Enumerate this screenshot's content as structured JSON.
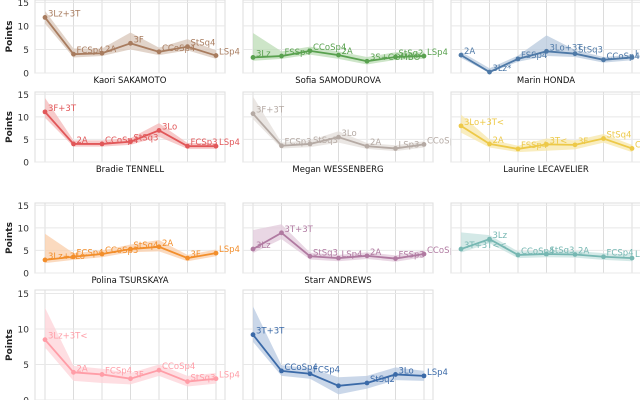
{
  "chart_data": {
    "type": "line",
    "layout": "facet-grid-3-columns",
    "ylabel": "Points",
    "y_ticks": [
      0,
      5,
      10,
      15
    ],
    "ylim": [
      0,
      15.5
    ],
    "grid": true,
    "panels": [
      {
        "title": "Kaori SAKAMOTO",
        "color": "#a87c5f",
        "band_color": "#d8c6b8",
        "points": [
          {
            "label": "3Lz+3T",
            "value": 11.8
          },
          {
            "label": "FCSp4",
            "value": 4.0
          },
          {
            "label": "2A",
            "value": 4.2
          },
          {
            "label": "3F",
            "value": 6.3
          },
          {
            "label": "CCoSp4",
            "value": 4.5
          },
          {
            "label": "StSq4",
            "value": 5.6
          },
          {
            "label": "LSp4",
            "value": 3.7
          }
        ],
        "band_low": [
          10.5,
          3.3,
          3.6,
          5.0,
          3.8,
          4.8,
          3.0
        ],
        "band_high": [
          13.2,
          5.2,
          5.2,
          8.6,
          5.4,
          7.2,
          4.8
        ]
      },
      {
        "title": "Sofia SAMODUROVA",
        "color": "#59a14f",
        "band_color": "#bcdcb5",
        "points": [
          {
            "label": "3Lz",
            "value": 3.3
          },
          {
            "label": "FSSp4",
            "value": 3.6
          },
          {
            "label": "CCoSp4",
            "value": 4.7
          },
          {
            "label": "2A",
            "value": 3.8
          },
          {
            "label": "3S+COMBO",
            "value": 2.5
          },
          {
            "label": "StSq2",
            "value": 3.4
          },
          {
            "label": "LSp4",
            "value": 3.6
          }
        ],
        "band_low": [
          2.6,
          3.0,
          3.9,
          3.0,
          1.8,
          2.8,
          3.0
        ],
        "band_high": [
          8.5,
          4.6,
          5.6,
          4.6,
          3.4,
          4.4,
          4.4
        ]
      },
      {
        "title": "Marin HONDA",
        "color": "#4e79a7",
        "band_color": "#b8c9dd",
        "points": [
          {
            "label": "2A",
            "value": 3.8
          },
          {
            "label": "3Lz*",
            "value": 0.2
          },
          {
            "label": "FSSp4",
            "value": 3.0
          },
          {
            "label": "3Lo+3T",
            "value": 4.6
          },
          {
            "label": "StSq3",
            "value": 4.1
          },
          {
            "label": "CCoSp4",
            "value": 2.8
          },
          {
            "label": "LSp4",
            "value": 3.3
          }
        ],
        "band_low": [
          3.2,
          0.0,
          2.4,
          3.6,
          3.4,
          2.2,
          2.7
        ],
        "band_high": [
          4.5,
          1.0,
          3.7,
          8.0,
          4.9,
          3.4,
          3.9
        ]
      },
      {
        "title": "Bradie TENNELL",
        "color": "#e15759",
        "band_color": "#f4b8b8",
        "points": [
          {
            "label": "3F+3T",
            "value": 11.1
          },
          {
            "label": "2A",
            "value": 4.0
          },
          {
            "label": "CCoSp4",
            "value": 4.0
          },
          {
            "label": "StSq3",
            "value": 4.5
          },
          {
            "label": "3Lo",
            "value": 7.0
          },
          {
            "label": "FCSp3",
            "value": 3.5
          },
          {
            "label": "LSp4",
            "value": 3.5
          }
        ],
        "band_low": [
          9.8,
          3.4,
          3.4,
          3.8,
          5.6,
          2.9,
          2.9
        ],
        "band_high": [
          14.2,
          4.8,
          4.8,
          5.3,
          8.6,
          4.2,
          4.2
        ]
      },
      {
        "title": "Megan WESSENBERG",
        "color": "#b5aaa4",
        "band_color": "#e3ddd9",
        "points": [
          {
            "label": "3F+3T",
            "value": 10.7
          },
          {
            "label": "FCSp3",
            "value": 3.6
          },
          {
            "label": "StSq3",
            "value": 4.0
          },
          {
            "label": "3Lo",
            "value": 5.5
          },
          {
            "label": "2A",
            "value": 3.5
          },
          {
            "label": "LSp3",
            "value": 3.0
          },
          {
            "label": "CCoSp4",
            "value": 3.9
          }
        ],
        "band_low": [
          9.5,
          3.0,
          3.3,
          4.3,
          2.9,
          2.4,
          3.2
        ],
        "band_high": [
          14.5,
          4.3,
          4.8,
          6.8,
          4.2,
          3.7,
          4.6
        ]
      },
      {
        "title": "Laurine LECAVELIER",
        "color": "#edc948",
        "band_color": "#f7e7a9",
        "points": [
          {
            "label": "3Lo+3T<",
            "value": 8.0
          },
          {
            "label": "2A",
            "value": 4.0
          },
          {
            "label": "FSSp4",
            "value": 2.9
          },
          {
            "label": "3T<",
            "value": 3.9
          },
          {
            "label": "3F",
            "value": 3.8
          },
          {
            "label": "StSq4",
            "value": 5.2
          },
          {
            "label": "CCoSp4",
            "value": 3.0
          }
        ],
        "band_low": [
          6.5,
          3.2,
          2.2,
          2.5,
          2.8,
          4.3,
          2.2
        ],
        "band_high": [
          10.5,
          5.0,
          3.6,
          5.2,
          4.8,
          6.2,
          3.8
        ]
      },
      {
        "title": "Polina TSURSKAYA",
        "color": "#f28e2b",
        "band_color": "#f9ceaa",
        "points": [
          {
            "label": "3Lz+3Lo",
            "value": 2.9
          },
          {
            "label": "FCSp4",
            "value": 3.6
          },
          {
            "label": "CCoSp3",
            "value": 4.2
          },
          {
            "label": "StSq4",
            "value": 5.3
          },
          {
            "label": "2A",
            "value": 5.8
          },
          {
            "label": "3F",
            "value": 3.3
          },
          {
            "label": "LSp4",
            "value": 4.4
          }
        ],
        "band_low": [
          2.2,
          2.9,
          3.5,
          4.6,
          4.8,
          2.6,
          3.7
        ],
        "band_high": [
          8.7,
          4.4,
          5.0,
          6.3,
          7.3,
          4.0,
          5.2
        ]
      },
      {
        "title": "Starr ANDREWS",
        "color": "#b07aa1",
        "band_color": "#e2c9db",
        "points": [
          {
            "label": "3Lz",
            "value": 5.3
          },
          {
            "label": "3T+3T",
            "value": 8.9
          },
          {
            "label": "StSq3",
            "value": 3.7
          },
          {
            "label": "LSp4",
            "value": 3.3
          },
          {
            "label": "2A",
            "value": 3.8
          },
          {
            "label": "FSSp3",
            "value": 3.2
          },
          {
            "label": "CCoSp4",
            "value": 4.2
          }
        ],
        "band_low": [
          4.4,
          7.5,
          3.0,
          2.6,
          3.1,
          2.5,
          3.5
        ],
        "band_high": [
          9.5,
          10.8,
          4.5,
          4.0,
          4.6,
          3.9,
          5.0
        ]
      },
      {
        "title": "",
        "color": "#76b7b2",
        "band_color": "#c5e2df",
        "points": [
          {
            "label": "3T+3T<<",
            "value": 5.3
          },
          {
            "label": "3Lz",
            "value": 7.5
          },
          {
            "label": "CCoSp4",
            "value": 4.0
          },
          {
            "label": "StSq3",
            "value": 4.2
          },
          {
            "label": "2A",
            "value": 4.1
          },
          {
            "label": "FCSp4",
            "value": 3.6
          },
          {
            "label": "LSp4",
            "value": 3.3
          }
        ],
        "band_low": [
          4.5,
          6.6,
          3.3,
          3.5,
          3.4,
          2.9,
          2.6
        ],
        "band_high": [
          9.0,
          8.4,
          4.8,
          5.0,
          4.9,
          4.4,
          4.1
        ]
      },
      {
        "title": "",
        "color": "#ff9da7",
        "band_color": "#fdd3d8",
        "points": [
          {
            "label": "3Lz+3T<",
            "value": 8.5
          },
          {
            "label": "2A",
            "value": 3.9
          },
          {
            "label": "FCSp4",
            "value": 3.6
          },
          {
            "label": "3F",
            "value": 3.0
          },
          {
            "label": "CCoSp4",
            "value": 4.2
          },
          {
            "label": "StSq3",
            "value": 2.6
          },
          {
            "label": "LSp4",
            "value": 3.0
          }
        ],
        "band_low": [
          7.4,
          2.7,
          2.4,
          2.2,
          3.4,
          1.9,
          2.3
        ],
        "band_high": [
          13.0,
          4.8,
          4.4,
          3.8,
          5.0,
          3.4,
          3.8
        ]
      },
      {
        "title": "",
        "color": "#3b6aa8",
        "band_color": "#b8c9e2",
        "points": [
          {
            "label": "3T+3T",
            "value": 9.2
          },
          {
            "label": "CCoSp4",
            "value": 4.1
          },
          {
            "label": "FCSp4",
            "value": 3.7
          },
          {
            "label": "",
            "value": 2.0
          },
          {
            "label": "StSq2",
            "value": 2.4
          },
          {
            "label": "3Lo",
            "value": 3.6
          },
          {
            "label": "LSp4",
            "value": 3.4
          }
        ],
        "band_low": [
          8.2,
          3.4,
          3.0,
          0.8,
          1.6,
          2.8,
          2.7
        ],
        "band_high": [
          13.2,
          4.9,
          4.5,
          3.2,
          3.4,
          4.6,
          4.1
        ]
      }
    ]
  }
}
